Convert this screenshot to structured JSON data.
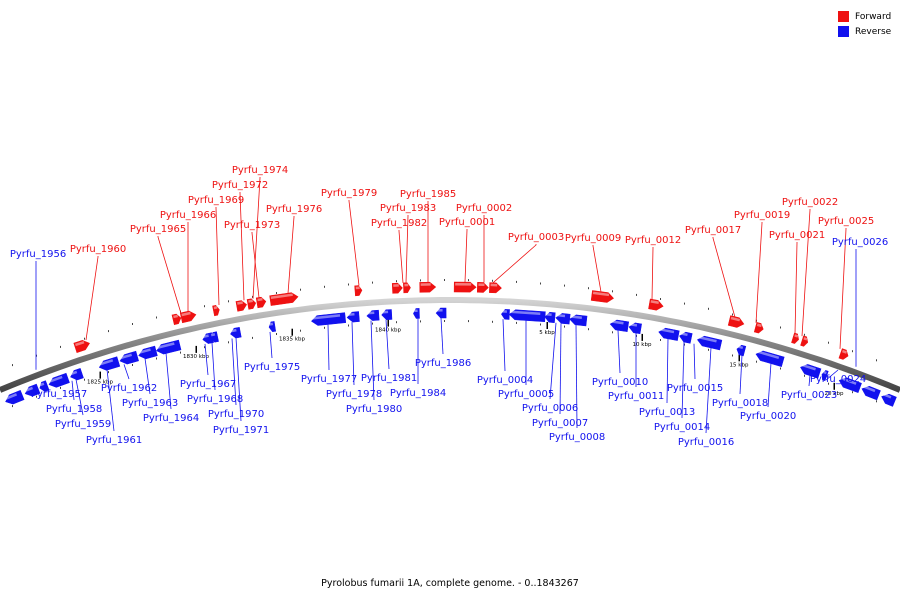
{
  "caption": "Pyrolobus fumarii 1A, complete genome. - 0..1843267",
  "legend": [
    {
      "label": "Forward",
      "color": "#ee1111"
    },
    {
      "label": "Reverse",
      "color": "#1111ee"
    }
  ],
  "colors": {
    "forward": "#ee1111",
    "reverse": "#1111ee",
    "backbone": "#8a8a8a"
  },
  "scale_ticks": [
    "1825 kbp",
    "1830 kbp",
    "1835 kbp",
    "1840 kbp",
    "5 kbp",
    "10 kbp",
    "15 kbp",
    "20 kbp"
  ],
  "forward_genes": [
    "Pyrfu_1960",
    "Pyrfu_1965",
    "Pyrfu_1966",
    "Pyrfu_1969",
    "Pyrfu_1972",
    "Pyrfu_1974",
    "Pyrfu_1973",
    "Pyrfu_1976",
    "Pyrfu_1979",
    "Pyrfu_1982",
    "Pyrfu_1983",
    "Pyrfu_1985",
    "Pyrfu_0001",
    "Pyrfu_0002",
    "Pyrfu_0003",
    "Pyrfu_0009",
    "Pyrfu_0012",
    "Pyrfu_0017",
    "Pyrfu_0019",
    "Pyrfu_0021",
    "Pyrfu_0022",
    "Pyrfu_0025"
  ],
  "reverse_genes": [
    "Pyrfu_1956",
    "Pyrfu_1957",
    "Pyrfu_1958",
    "Pyrfu_1959",
    "Pyrfu_1961",
    "Pyrfu_1962",
    "Pyrfu_1963",
    "Pyrfu_1964",
    "Pyrfu_1967",
    "Pyrfu_1968",
    "Pyrfu_1970",
    "Pyrfu_1971",
    "Pyrfu_1975",
    "Pyrfu_1977",
    "Pyrfu_1978",
    "Pyrfu_1980",
    "Pyrfu_1981",
    "Pyrfu_1984",
    "Pyrfu_1986",
    "Pyrfu_0004",
    "Pyrfu_0005",
    "Pyrfu_0006",
    "Pyrfu_0007",
    "Pyrfu_0008",
    "Pyrfu_0010",
    "Pyrfu_0011",
    "Pyrfu_0013",
    "Pyrfu_0014",
    "Pyrfu_0015",
    "Pyrfu_0016",
    "Pyrfu_0018",
    "Pyrfu_0020",
    "Pyrfu_0023",
    "Pyrfu_0024",
    "Pyrfu_0026"
  ]
}
